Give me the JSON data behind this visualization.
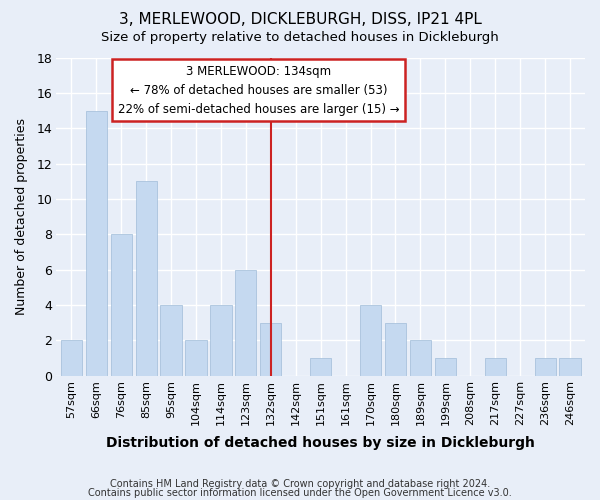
{
  "title": "3, MERLEWOOD, DICKLEBURGH, DISS, IP21 4PL",
  "subtitle": "Size of property relative to detached houses in Dickleburgh",
  "xlabel": "Distribution of detached houses by size in Dickleburgh",
  "ylabel": "Number of detached properties",
  "bar_labels": [
    "57sqm",
    "66sqm",
    "76sqm",
    "85sqm",
    "95sqm",
    "104sqm",
    "114sqm",
    "123sqm",
    "132sqm",
    "142sqm",
    "151sqm",
    "161sqm",
    "170sqm",
    "180sqm",
    "189sqm",
    "199sqm",
    "208sqm",
    "217sqm",
    "227sqm",
    "236sqm",
    "246sqm"
  ],
  "bar_heights": [
    2,
    15,
    8,
    11,
    4,
    2,
    4,
    6,
    3,
    0,
    1,
    0,
    4,
    3,
    2,
    1,
    0,
    1,
    0,
    1,
    1
  ],
  "bar_color": "#c5d9f0",
  "bar_edge_color": "#a0bcd8",
  "vline_index": 8,
  "vline_color": "#cc2222",
  "annotation_text": "3 MERLEWOOD: 134sqm\n← 78% of detached houses are smaller (53)\n22% of semi-detached houses are larger (15) →",
  "annotation_box_color": "#ffffff",
  "annotation_box_edge_color": "#cc2222",
  "ylim": [
    0,
    18
  ],
  "yticks": [
    0,
    2,
    4,
    6,
    8,
    10,
    12,
    14,
    16,
    18
  ],
  "bg_color": "#e8eef8",
  "grid_color": "#ffffff",
  "footer_line1": "Contains HM Land Registry data © Crown copyright and database right 2024.",
  "footer_line2": "Contains public sector information licensed under the Open Government Licence v3.0."
}
